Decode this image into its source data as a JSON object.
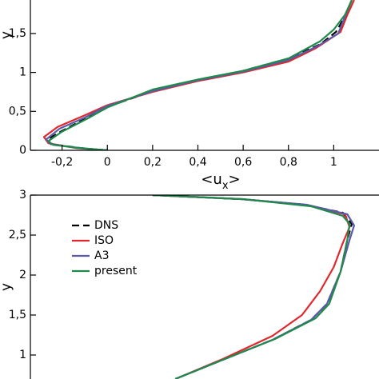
{
  "chart_data": [
    {
      "type": "line",
      "ylabel": "y",
      "xlabel": [
        "<u",
        "x",
        ">"
      ],
      "xlim": [
        -0.34,
        1.2
      ],
      "ylim": [
        0,
        1.93
      ],
      "xticks": [
        {
          "value": -0.2,
          "label": "-0,2"
        },
        0,
        {
          "value": 0.2,
          "label": "0,2"
        },
        {
          "value": 0.4,
          "label": "0,4"
        },
        {
          "value": 0.6,
          "label": "0,6"
        },
        {
          "value": 0.8,
          "label": "0,8"
        },
        1
      ],
      "yticks": [
        0,
        {
          "value": 0.5,
          "label": "0,5"
        },
        1,
        {
          "value": 1.5,
          "label": "1,5"
        }
      ],
      "series": [
        {
          "color": "#000000",
          "dash": true,
          "x": [
            0,
            -0.12,
            -0.25,
            -0.27,
            -0.2,
            -0.1,
            0,
            0.2,
            0.4,
            0.6,
            0.8,
            0.94,
            1.01,
            1.05,
            1.08
          ],
          "values": [
            0,
            0.03,
            0.08,
            0.13,
            0.25,
            0.4,
            0.56,
            0.76,
            0.9,
            1.02,
            1.18,
            1.36,
            1.52,
            1.72,
            1.93
          ]
        },
        {
          "color": "#e0282c",
          "dash": false,
          "x": [
            0,
            -0.14,
            -0.26,
            -0.28,
            -0.22,
            -0.1,
            0,
            0.2,
            0.4,
            0.6,
            0.8,
            0.92,
            1.03,
            1.06,
            1.09
          ],
          "values": [
            0,
            0.03,
            0.09,
            0.17,
            0.3,
            0.45,
            0.58,
            0.75,
            0.89,
            1.0,
            1.14,
            1.31,
            1.52,
            1.74,
            1.93
          ]
        },
        {
          "color": "#5a5aa8",
          "dash": false,
          "x": [
            0,
            -0.13,
            -0.25,
            -0.27,
            -0.21,
            -0.1,
            0,
            0.2,
            0.4,
            0.6,
            0.8,
            0.93,
            1.02,
            1.05,
            1.08
          ],
          "values": [
            0,
            0.03,
            0.08,
            0.14,
            0.28,
            0.42,
            0.57,
            0.76,
            0.9,
            1.01,
            1.16,
            1.34,
            1.5,
            1.72,
            1.93
          ]
        },
        {
          "color": "#1f8a4c",
          "dash": false,
          "x": [
            0,
            -0.12,
            -0.24,
            -0.26,
            -0.2,
            -0.08,
            0,
            0.2,
            0.4,
            0.6,
            0.8,
            0.94,
            1.0,
            1.05,
            1.08
          ],
          "values": [
            0,
            0.03,
            0.07,
            0.12,
            0.24,
            0.42,
            0.55,
            0.78,
            0.91,
            1.02,
            1.18,
            1.4,
            1.55,
            1.74,
            1.93
          ]
        }
      ]
    },
    {
      "type": "line",
      "ylabel": "y",
      "legend": "upper left",
      "xlim": [
        -0.34,
        1.2
      ],
      "ylim": [
        0.7,
        3
      ],
      "yticks": [
        1,
        {
          "value": 1.5,
          "label": "1,5"
        },
        2,
        {
          "value": 2.5,
          "label": "2,5"
        },
        3
      ],
      "series": [
        {
          "name": "DNS",
          "color": "#000000",
          "dash": true,
          "x": [
            0.2,
            0.59,
            0.87,
            1.04,
            1.08,
            1.06,
            1.03,
            0.97,
            0.9,
            0.73,
            0.51,
            0.3
          ],
          "values": [
            3,
            2.95,
            2.88,
            2.78,
            2.64,
            2.44,
            2.04,
            1.64,
            1.44,
            1.19,
            0.94,
            0.7
          ]
        },
        {
          "name": "ISO",
          "color": "#e0282c",
          "dash": false,
          "x": [
            0.2,
            0.59,
            0.87,
            1.05,
            1.07,
            1.04,
            1.0,
            0.94,
            0.86,
            0.73,
            0.51,
            0.3
          ],
          "values": [
            3,
            2.95,
            2.88,
            2.76,
            2.6,
            2.4,
            2.1,
            1.8,
            1.5,
            1.24,
            0.95,
            0.7
          ]
        },
        {
          "name": "A3",
          "color": "#5a5aa8",
          "dash": false,
          "x": [
            0.2,
            0.59,
            0.88,
            1.06,
            1.09,
            1.07,
            1.03,
            0.97,
            0.9,
            0.73,
            0.51,
            0.3
          ],
          "values": [
            3,
            2.95,
            2.88,
            2.76,
            2.62,
            2.44,
            2.04,
            1.64,
            1.44,
            1.19,
            0.94,
            0.7
          ]
        },
        {
          "name": "present",
          "color": "#1f8a4c",
          "dash": false,
          "x": [
            0.2,
            0.6,
            0.9,
            1.04,
            1.07,
            1.06,
            1.03,
            0.98,
            0.92,
            0.74,
            0.51,
            0.3
          ],
          "values": [
            3,
            2.95,
            2.86,
            2.74,
            2.64,
            2.44,
            2.04,
            1.64,
            1.46,
            1.2,
            0.94,
            0.7
          ]
        }
      ]
    }
  ]
}
